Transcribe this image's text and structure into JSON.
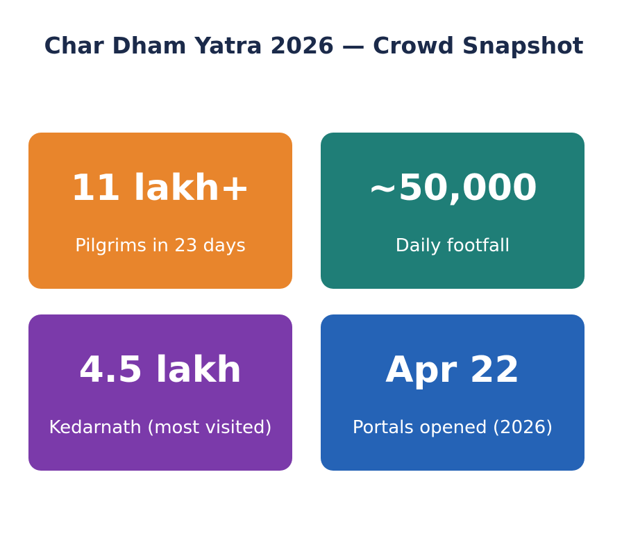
{
  "title": "Char Dham Yatra 2026 — Crowd Snapshot",
  "cards": [
    {
      "value": "11 lakh+",
      "label": "Pilgrims in 23 days",
      "color": "#e8852c"
    },
    {
      "value": "~50,000",
      "label": "Daily footfall",
      "color": "#1f7e77"
    },
    {
      "value": "4.5 lakh",
      "label": "Kedarnath (most visited)",
      "color": "#7b3aaa"
    },
    {
      "value": "Apr 22",
      "label": "Portals opened (2026)",
      "color": "#2563b6"
    }
  ]
}
